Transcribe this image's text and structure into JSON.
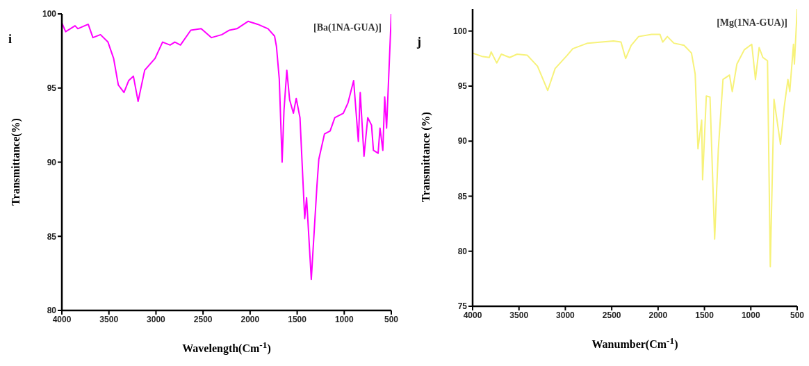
{
  "chart_data": [
    {
      "type": "line",
      "xlabel": "Wavelength(Cm$^{-1}$)",
      "ylabel": "Transmittance(%)",
      "annotations": [
        "i",
        "[Ba(1NA-GUA)]"
      ],
      "xlim": [
        4000,
        500
      ],
      "xticks": [
        4000,
        3500,
        3000,
        2500,
        2000,
        1500,
        1000,
        500
      ],
      "ylim": [
        80,
        100
      ],
      "yticks": [
        80,
        85,
        90,
        95,
        100
      ],
      "grid": false,
      "legend": false,
      "marker": "none",
      "series": [
        {
          "color": "#ff00ff",
          "x": [
            4000,
            3960,
            3860,
            3830,
            3720,
            3670,
            3590,
            3510,
            3450,
            3400,
            3340,
            3290,
            3240,
            3190,
            3120,
            3010,
            2930,
            2850,
            2800,
            2740,
            2630,
            2520,
            2410,
            2300,
            2220,
            2140,
            2020,
            1920,
            1810,
            1740,
            1720,
            1690,
            1660,
            1640,
            1610,
            1580,
            1540,
            1510,
            1470,
            1420,
            1400,
            1350,
            1290,
            1270,
            1210,
            1150,
            1100,
            1010,
            960,
            900,
            850,
            830,
            790,
            750,
            710,
            690,
            640,
            620,
            590,
            570,
            550,
            500
          ],
          "values": [
            99.4,
            98.8,
            99.2,
            99.0,
            99.3,
            98.4,
            98.6,
            98.1,
            97.0,
            95.2,
            94.7,
            95.5,
            95.8,
            94.1,
            96.2,
            97.0,
            98.1,
            97.9,
            98.1,
            97.9,
            98.9,
            99.0,
            98.4,
            98.6,
            98.9,
            99.0,
            99.5,
            99.3,
            99.0,
            98.5,
            97.8,
            95.6,
            90.0,
            93.5,
            96.2,
            94.2,
            93.3,
            94.3,
            93.0,
            86.2,
            87.6,
            82.1,
            88.4,
            90.2,
            91.9,
            92.1,
            93.0,
            93.3,
            94.0,
            95.5,
            91.4,
            94.7,
            90.4,
            93.0,
            92.5,
            90.8,
            90.6,
            92.3,
            90.8,
            94.4,
            92.3,
            100
          ]
        }
      ]
    },
    {
      "type": "line",
      "xlabel": "Wanumber(Cm$^{-1}$)",
      "ylabel": "Transmittance (%)",
      "annotations": [
        "j",
        "[Mg(1NA-GUA)]"
      ],
      "xlim": [
        4000,
        500
      ],
      "xticks": [
        4000,
        3500,
        3000,
        2500,
        2000,
        1500,
        1000,
        500
      ],
      "ylim": [
        75,
        102
      ],
      "yticks": [
        75,
        80,
        85,
        90,
        95,
        100
      ],
      "grid": false,
      "legend": false,
      "marker": "none",
      "series": [
        {
          "color": "#f7f27a",
          "x": [
            4000,
            3900,
            3820,
            3800,
            3740,
            3690,
            3600,
            3520,
            3410,
            3300,
            3190,
            3110,
            2980,
            2920,
            2760,
            2480,
            2400,
            2350,
            2290,
            2210,
            2070,
            1980,
            1950,
            1900,
            1830,
            1720,
            1640,
            1600,
            1570,
            1530,
            1520,
            1480,
            1440,
            1390,
            1350,
            1300,
            1230,
            1200,
            1150,
            1070,
            990,
            950,
            910,
            870,
            820,
            790,
            750,
            680,
            640,
            600,
            580,
            540,
            530,
            500
          ],
          "values": [
            98.0,
            97.7,
            97.6,
            98.1,
            97.1,
            97.9,
            97.6,
            97.9,
            97.8,
            96.8,
            94.6,
            96.6,
            97.8,
            98.4,
            98.9,
            99.1,
            99.0,
            97.5,
            98.7,
            99.5,
            99.7,
            99.7,
            99.0,
            99.5,
            98.9,
            98.7,
            98.0,
            96.1,
            89.3,
            91.9,
            86.5,
            94.1,
            94.0,
            81.1,
            89.3,
            95.6,
            96.0,
            94.5,
            97.0,
            98.3,
            98.8,
            95.6,
            98.5,
            97.6,
            97.3,
            78.6,
            93.8,
            89.7,
            93.1,
            95.6,
            94.5,
            98.8,
            97.0,
            102
          ]
        }
      ]
    }
  ]
}
